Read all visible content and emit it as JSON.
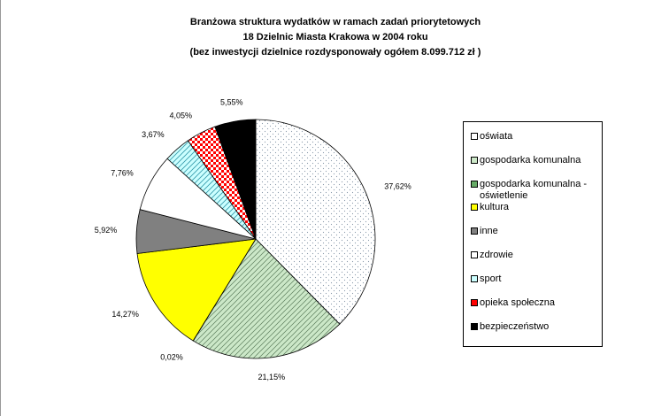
{
  "chart_data": {
    "type": "pie",
    "title": [
      "Branżowa struktura wydatków w ramach zadań priorytetowych",
      "18 Dzielnic Miasta Krakowa w 2004 roku",
      "(bez inwestycji dzielnice rozdysponowały ogółem  8.099.712 zł )"
    ],
    "categories": [
      "oświata",
      "gospodarka komunalna",
      "gospodarka komunalna - oświetlenie",
      "kultura",
      "inne",
      "zdrowie",
      "sport",
      "opieka społeczna",
      "bezpieczeństwo"
    ],
    "values": [
      37.62,
      21.15,
      0.02,
      14.27,
      5.92,
      7.76,
      3.67,
      4.05,
      5.55
    ],
    "value_labels": [
      "37,62%",
      "21,15%",
      "0,02%",
      "14,27%",
      "5,92%",
      "7,76%",
      "3,67%",
      "4,05%",
      "5,55%"
    ],
    "colors": [
      "#ffffff",
      "#cce8c8",
      "#66aa66",
      "#ffff00",
      "#808080",
      "#ffffff",
      "#ccffff",
      "#ff0000",
      "#000000"
    ]
  }
}
